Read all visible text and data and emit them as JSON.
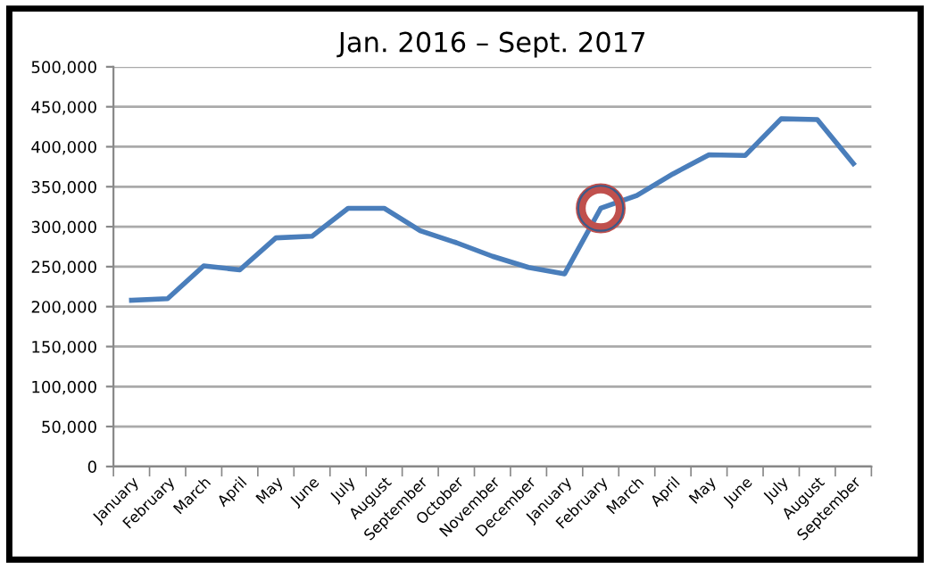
{
  "chart_data": {
    "type": "line",
    "title": "Jan. 2016 – Sept. 2017",
    "categories": [
      "January",
      "February",
      "March",
      "April",
      "May",
      "June",
      "July",
      "August",
      "September",
      "October",
      "November",
      "December",
      "January",
      "February",
      "March",
      "April",
      "May",
      "June",
      "July",
      "August",
      "September"
    ],
    "series": [
      {
        "color": "#4a7ebb",
        "values": [
          208000,
          210000,
          251000,
          246000,
          286000,
          288000,
          323000,
          323000,
          295000,
          280000,
          263000,
          249000,
          241000,
          323000,
          339000,
          366000,
          390000,
          389000,
          435000,
          434000,
          379000
        ]
      },
      {
        "type": "scatter",
        "color": "#c0504d",
        "values": [
          null,
          null,
          null,
          null,
          null,
          null,
          null,
          null,
          null,
          null,
          null,
          null,
          null,
          323000,
          null,
          null,
          null,
          null,
          null,
          null,
          null
        ]
      }
    ],
    "ylim": [
      0,
      500000
    ],
    "yticks": [
      {
        "value": 0,
        "label": "0"
      },
      {
        "value": 50000,
        "label": "50,000"
      },
      {
        "value": 100000,
        "label": "100,000"
      },
      {
        "value": 150000,
        "label": "150,000"
      },
      {
        "value": 200000,
        "label": "200,000"
      },
      {
        "value": 250000,
        "label": "250,000"
      },
      {
        "value": 300000,
        "label": "300,000"
      },
      {
        "value": 350000,
        "label": "350,000"
      },
      {
        "value": 400000,
        "label": "400,000"
      },
      {
        "value": 450000,
        "label": "450,000"
      },
      {
        "value": 500000,
        "label": "500,000"
      }
    ],
    "grid": "y"
  }
}
